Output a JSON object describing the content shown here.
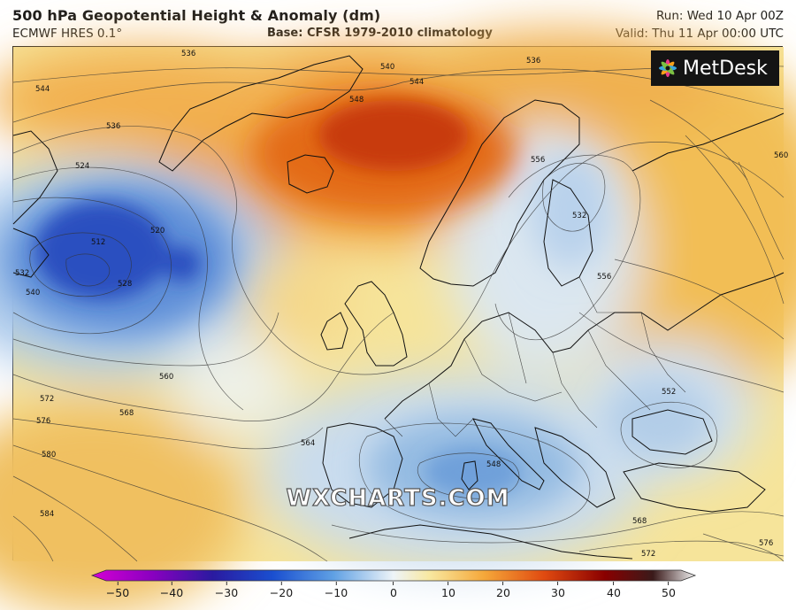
{
  "header": {
    "title": "500 hPa Geopotential Height & Anomaly (dm)",
    "model": "ECMWF HRES 0.1°",
    "base": "Base: CFSR 1979-2010 climatology",
    "run": "Run: Wed 10 Apr 00Z",
    "valid": "Valid: Thu 11 Apr 00:00 UTC"
  },
  "map": {
    "logo_text": "MetDesk",
    "watermark": "WXCHARTS.COM",
    "contour_labels": [
      "536",
      "544",
      "540",
      "544",
      "536",
      "548",
      "536",
      "524",
      "512",
      "520",
      "528",
      "532",
      "540",
      "556",
      "532",
      "560",
      "556",
      "560",
      "552",
      "572",
      "568",
      "576",
      "580",
      "584",
      "564",
      "548",
      "568",
      "572",
      "576"
    ]
  },
  "colorbar": {
    "ticks": [
      "−50",
      "−40",
      "−30",
      "−20",
      "−10",
      "0",
      "10",
      "20",
      "30",
      "40",
      "50"
    ],
    "colors": [
      "#c800c8",
      "#6a00b5",
      "#1a1aa0",
      "#1e50d0",
      "#5a9ae0",
      "#c8ddf0",
      "#f8f0b0",
      "#f5b040",
      "#e05010",
      "#a00000",
      "#3a1a1a",
      "#e8e8e8"
    ]
  }
}
